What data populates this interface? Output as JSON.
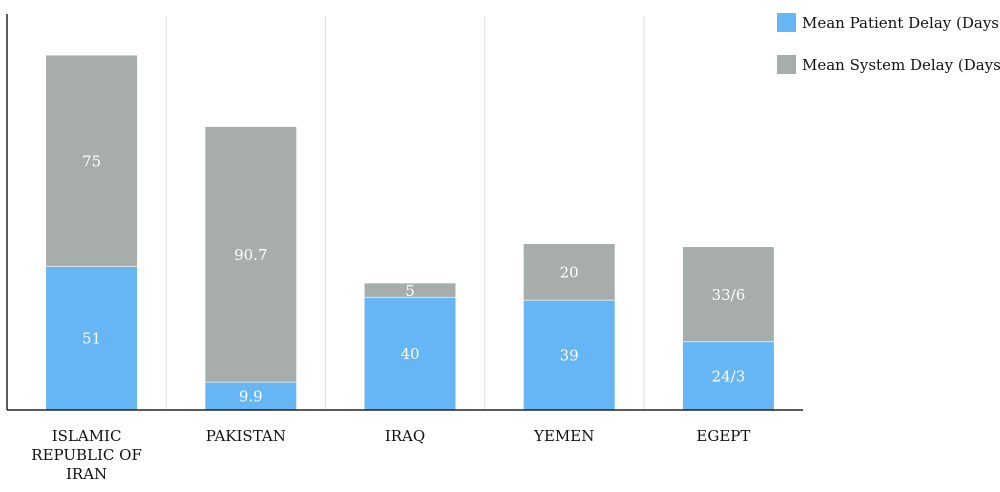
{
  "chart_data": {
    "type": "bar",
    "stacked": true,
    "title": "",
    "xlabel": "",
    "ylabel": "",
    "categories": [
      "ISLAMIC REPUBLIC OF IRAN",
      "PAKISTAN",
      "IRAQ",
      "YEMEN",
      "EGEPT"
    ],
    "category_lines": [
      [
        "ISLAMIC",
        "REPUBLIC OF",
        "IRAN"
      ],
      [
        "PAKISTAN"
      ],
      [
        "IRAQ"
      ],
      [
        "YEMEN"
      ],
      [
        "EGEPT"
      ]
    ],
    "series": [
      {
        "name": "Mean Patient Delay (Days)",
        "color": "#66b5f5",
        "values": [
          51,
          9.9,
          40,
          39,
          24.3
        ],
        "labels": [
          "51",
          "9.9",
          "40",
          "39",
          "24/3"
        ]
      },
      {
        "name": "Mean System Delay (Days)",
        "color": "#a7adab",
        "values": [
          75,
          90.7,
          5,
          20,
          33.6
        ],
        "labels": [
          "75",
          "90.7",
          "5",
          "20",
          "33/6"
        ]
      }
    ],
    "ylim": [
      0,
      140
    ],
    "grid": "vertical category separators",
    "legend": "top-right"
  }
}
